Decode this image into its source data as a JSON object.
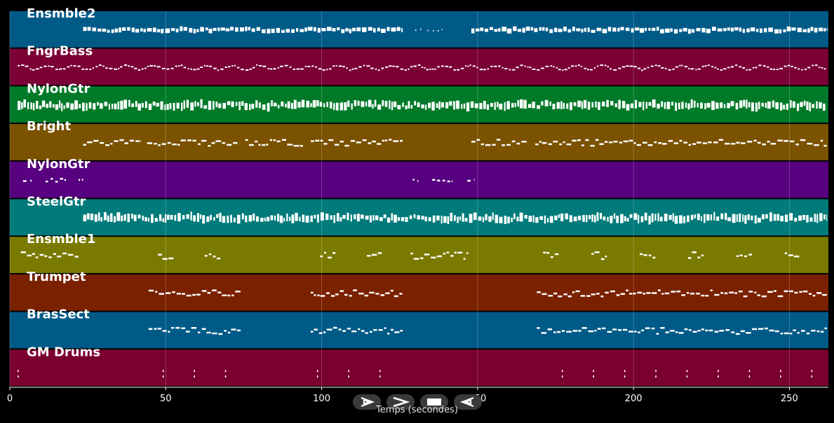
{
  "chart_data": {
    "type": "piano-roll",
    "xlabel": "Temps (secondes)",
    "xlim": [
      0,
      262.5
    ],
    "xticks": [
      0,
      50,
      100,
      150,
      200,
      250
    ],
    "tracks": [
      {
        "name": "Ensmble2",
        "color": "#005a87",
        "style": "dense",
        "segments": [
          [
            23.5,
            126
          ],
          [
            129,
            138.5
          ],
          [
            148,
            262
          ]
        ],
        "sparse": [
          [
            129,
            138.5
          ]
        ]
      },
      {
        "name": "FngrBass",
        "color": "#7a0036",
        "style": "wave",
        "segments": [
          [
            2.5,
            262
          ]
        ]
      },
      {
        "name": "NylonGtr",
        "color": "#007a28",
        "style": "thick",
        "segments": [
          [
            2.5,
            262
          ]
        ]
      },
      {
        "name": "Bright",
        "color": "#7a5200",
        "style": "phrases",
        "segments": [
          [
            23.5,
            42
          ],
          [
            44,
            73
          ],
          [
            75.5,
            94
          ],
          [
            96.5,
            126
          ],
          [
            148,
            166
          ],
          [
            168.5,
            262
          ]
        ]
      },
      {
        "name": "NylonGtr",
        "color": "#570080",
        "style": "sparse",
        "segments": [
          [
            3.5,
            7
          ],
          [
            11,
            18
          ],
          [
            21.5,
            23.5
          ],
          [
            128.5,
            131
          ],
          [
            135,
            142
          ],
          [
            146,
            148.5
          ]
        ]
      },
      {
        "name": "SteelGtr",
        "color": "#007a7a",
        "style": "thick",
        "segments": [
          [
            23.5,
            262
          ]
        ]
      },
      {
        "name": "Ensmble1",
        "color": "#7a7a00",
        "style": "clusters",
        "segments": [
          [
            3.5,
            22
          ],
          [
            47.5,
            52.5
          ],
          [
            62.5,
            67.5
          ],
          [
            99.5,
            104.5
          ],
          [
            114.5,
            119.5
          ],
          [
            128.5,
            147
          ],
          [
            171,
            176
          ],
          [
            186.5,
            191.5
          ],
          [
            202,
            207
          ],
          [
            217.5,
            222.5
          ],
          [
            233,
            238
          ],
          [
            248.5,
            253.5
          ]
        ]
      },
      {
        "name": "Trumpet",
        "color": "#7a2100",
        "style": "phrases",
        "segments": [
          [
            44.5,
            74
          ],
          [
            96.5,
            126
          ],
          [
            169,
            262
          ]
        ]
      },
      {
        "name": "BrasSect",
        "color": "#005a87",
        "style": "phrases",
        "segments": [
          [
            44.5,
            74
          ],
          [
            96.5,
            126
          ],
          [
            169,
            262
          ]
        ]
      },
      {
        "name": "GM Drums",
        "color": "#7a002f",
        "style": "ticks",
        "segments": [
          [
            2.5,
            2.5
          ],
          [
            49,
            49
          ],
          [
            59,
            59
          ],
          [
            69,
            69
          ],
          [
            98.5,
            98.5
          ],
          [
            108.5,
            108.5
          ],
          [
            118.5,
            118.5
          ],
          [
            177,
            177
          ],
          [
            187,
            187
          ],
          [
            197,
            197
          ],
          [
            207,
            207
          ],
          [
            217,
            217
          ],
          [
            227,
            227
          ],
          [
            237,
            237
          ],
          [
            247,
            247
          ],
          [
            257,
            257
          ]
        ]
      }
    ]
  },
  "controls": [
    {
      "name": "play-button",
      "icon": "play-icon"
    },
    {
      "name": "fast-forward-button",
      "icon": "fast-forward-icon"
    },
    {
      "name": "stop-button",
      "icon": "stop-icon"
    },
    {
      "name": "rewind-button",
      "icon": "rewind-icon"
    }
  ]
}
